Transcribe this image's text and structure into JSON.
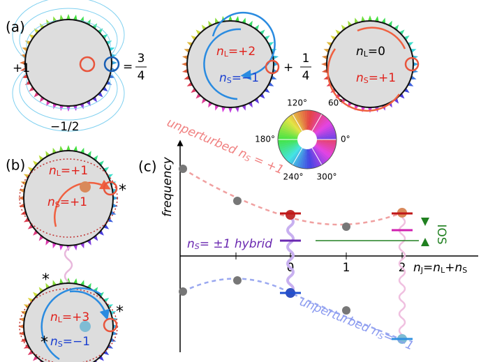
{
  "panel_a": {
    "label": "(a)",
    "left_charge": "+1",
    "bottom_charge": "−1/2",
    "equals": "=",
    "coef1": {
      "num": "3",
      "den": "4"
    },
    "plus": "+",
    "coef2": {
      "num": "1",
      "den": "4"
    },
    "circle2": {
      "top": {
        "n": "n",
        "sub": "L",
        "rest": "=+2"
      },
      "bottom": {
        "n": "n",
        "sub": "S",
        "rest": "=−1"
      }
    },
    "circle3": {
      "top": {
        "n": "n",
        "sub": "L",
        "rest": "=0"
      },
      "bottom": {
        "n": "n",
        "sub": "S",
        "rest": "=+1"
      }
    }
  },
  "color_wheel": {
    "labels": [
      "0°",
      "60°",
      "120°",
      "180°",
      "240°",
      "300°"
    ]
  },
  "panel_b": {
    "label": "(b)",
    "upper": {
      "top": {
        "n": "n",
        "sub": "L",
        "rest": "=+1"
      },
      "bottom": {
        "n": "n",
        "sub": "S",
        "rest": "=+1"
      }
    },
    "lower": {
      "top": {
        "n": "n",
        "sub": "L",
        "rest": "=+3"
      },
      "bottom": {
        "n": "n",
        "sub": "S",
        "rest": "=−1"
      }
    },
    "asterisk": "*"
  },
  "panel_c": {
    "label": "(c)",
    "y_axis": "frequency",
    "x_ticks": [
      "0",
      "1",
      "2"
    ],
    "x_axis": {
      "n": "n",
      "sub": "J",
      "eq": "=",
      "n2": "n",
      "sub2": "L",
      "plus": "+",
      "n3": "n",
      "sub3": "S"
    },
    "upper_curve": {
      "pre": "unperturbed ",
      "n": "n",
      "sub": "S",
      "rest": " = +1"
    },
    "hybrid": {
      "n": "n",
      "sub": "S",
      "rest": "= ±1 hybrid"
    },
    "lower_curve": {
      "pre": "unperturbed ",
      "n": "n",
      "sub": "S",
      "rest": "= −1"
    },
    "gap": "IOS"
  }
}
